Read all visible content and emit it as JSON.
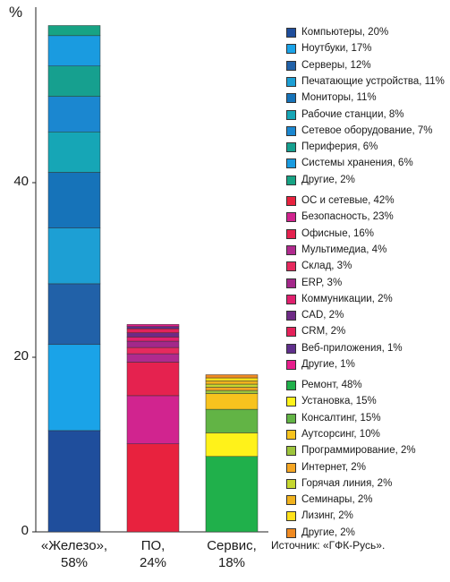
{
  "chart_data": {
    "type": "bar",
    "stacked": true,
    "y_unit_label": "%",
    "ylim": [
      0,
      60
    ],
    "yticks": [
      0,
      20,
      40
    ],
    "grid": false,
    "legend_position": "right",
    "source": "Источник: «ГФК-Русь».",
    "categories": [
      {
        "name": "«Железо»,",
        "share": "58%",
        "total": 58,
        "segments": [
          {
            "label": "Компьютеры, 20%",
            "pct": 20,
            "color": "#1f4e9c"
          },
          {
            "label": "Ноутбуки, 17%",
            "pct": 17,
            "color": "#1aa3e8"
          },
          {
            "label": "Серверы, 12%",
            "pct": 12,
            "color": "#2161a8"
          },
          {
            "label": "Печатающие устройства, 11%",
            "pct": 11,
            "color": "#1d9fd4"
          },
          {
            "label": "Мониторы, 11%",
            "pct": 11,
            "color": "#1673b9"
          },
          {
            "label": "Рабочие станции, 8%",
            "pct": 8,
            "color": "#16a6b6"
          },
          {
            "label": "Сетевое оборудование, 7%",
            "pct": 7,
            "color": "#1b87d0"
          },
          {
            "label": "Периферия, 6%",
            "pct": 6,
            "color": "#16a08f"
          },
          {
            "label": "Системы хранения, 6%",
            "pct": 6,
            "color": "#1a9be0"
          },
          {
            "label": "Другие, 2%",
            "pct": 2,
            "color": "#17a384"
          }
        ]
      },
      {
        "name": "ПО,",
        "share": "24%",
        "total": 24,
        "segments": [
          {
            "label": "ОС и сетевые, 42%",
            "pct": 42,
            "color": "#e8223e"
          },
          {
            "label": "Безопасность, 23%",
            "pct": 23,
            "color": "#d1248f"
          },
          {
            "label": "Офисные, 16%",
            "pct": 16,
            "color": "#e5224f"
          },
          {
            "label": "Мультимедиа, 4%",
            "pct": 4,
            "color": "#b02a8e"
          },
          {
            "label": "Склад, 3%",
            "pct": 3,
            "color": "#e62a5e"
          },
          {
            "label": "ERP, 3%",
            "pct": 3,
            "color": "#a3288a"
          },
          {
            "label": "Коммуникации, 2%",
            "pct": 2,
            "color": "#e0206e"
          },
          {
            "label": "CAD, 2%",
            "pct": 2,
            "color": "#6e2a86"
          },
          {
            "label": "CRM, 2%",
            "pct": 2,
            "color": "#e4225a"
          },
          {
            "label": "Веб-приложения, 1%",
            "pct": 1,
            "color": "#5f2f8c"
          },
          {
            "label": "Другие, 1%",
            "pct": 1,
            "color": "#e61e8c"
          }
        ]
      },
      {
        "name": "Сервис,",
        "share": "18%",
        "total": 18,
        "segments": [
          {
            "label": "Ремонт, 48%",
            "pct": 48,
            "color": "#20b04b"
          },
          {
            "label": "Установка, 15%",
            "pct": 15,
            "color": "#fff21a"
          },
          {
            "label": "Консалтинг, 15%",
            "pct": 15,
            "color": "#62b445"
          },
          {
            "label": "Аутсорсинг, 10%",
            "pct": 10,
            "color": "#f7c31e"
          },
          {
            "label": "Программирование, 2%",
            "pct": 2,
            "color": "#9dc43c"
          },
          {
            "label": "Интернет, 2%",
            "pct": 2,
            "color": "#f5a623"
          },
          {
            "label": "Горячая линия, 2%",
            "pct": 2,
            "color": "#c6d730"
          },
          {
            "label": "Семинары, 2%",
            "pct": 2,
            "color": "#f0b21e"
          },
          {
            "label": "Лизинг, 2%",
            "pct": 2,
            "color": "#ffe11a"
          },
          {
            "label": "Другие, 2%",
            "pct": 2,
            "color": "#f08a22"
          }
        ]
      }
    ]
  }
}
